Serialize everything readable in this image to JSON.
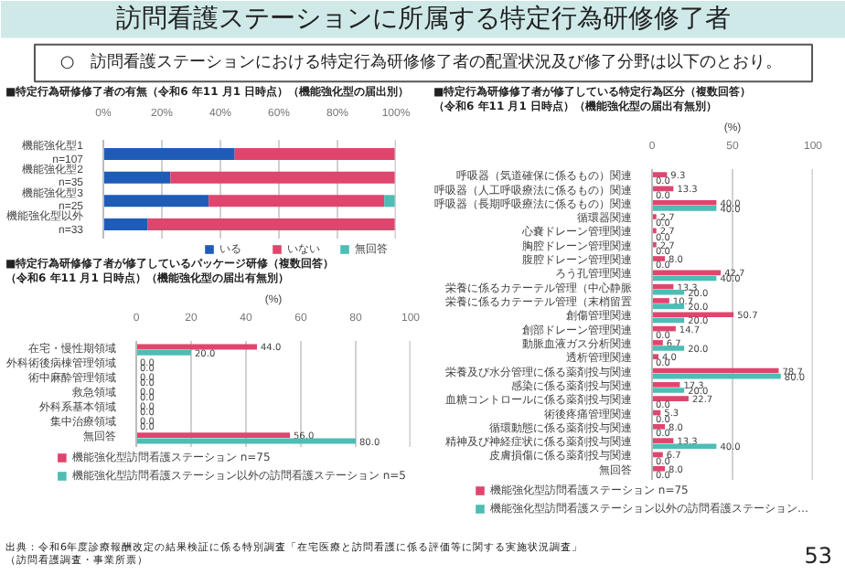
{
  "chart_data": [
    {
      "type": "other",
      "title": "訪問看護ステーションに所属する特定行為研修修了者",
      "annotations": [
        "○　訪問看護ステーションにおける特定行為研修修了者の配置状況及び修了分野は以下のとおり。"
      ]
    },
    {
      "type": "bar",
      "orientation": "horizontal",
      "stacked": true,
      "title": "■特定行為研修修了者の有無（令和6 年11 月1 日時点）（機能強化型の届出別）",
      "categories": [
        "機能強化型1\nn=107",
        "機能強化型2\nn=35",
        "機能強化型3\nn=25",
        "機能強化型以外\nn=33"
      ],
      "series": [
        {
          "name": "いる",
          "color": "#1f5cb8",
          "values": [
            44.9,
            22.9,
            36.0,
            15.2
          ]
        },
        {
          "name": "いない",
          "color": "#e0456e",
          "values": [
            55.1,
            77.1,
            60.0,
            84.8
          ]
        },
        {
          "name": "無回答",
          "color": "#4dbdb5",
          "values": [
            0,
            0,
            4.0,
            0
          ]
        }
      ],
      "xlim": [
        0,
        100
      ],
      "xticks": [
        {
          "value": 0,
          "label": "0%"
        },
        {
          "value": 20,
          "label": "20%"
        },
        {
          "value": 40,
          "label": "40%"
        },
        {
          "value": 60,
          "label": "60%"
        },
        {
          "value": 80,
          "label": "80%"
        },
        {
          "value": 100,
          "label": "100%"
        }
      ],
      "grid": "x",
      "legend": "bottom"
    },
    {
      "type": "bar",
      "orientation": "horizontal",
      "title": "■特定行為研修修了者が修了しているパッケージ研修（複数回答）",
      "subtitle": "（令和6 年11 月1 日時点）（機能強化型の届出有無別）",
      "categories": [
        "在宅・慢性期領域",
        "外科術後病棟管理領域",
        "術中麻酔管理領域",
        "救急領域",
        "外科系基本領域",
        "集中治療領域",
        "無回答"
      ],
      "series": [
        {
          "name": "機能強化型訪問看護ステーション n=75",
          "color": "#e0456e",
          "values": [
            44.0,
            0,
            0,
            0,
            0,
            0,
            56.0
          ],
          "value_labels": [
            "44.0",
            "0.0",
            "0.0",
            "0.0",
            "0.0",
            "0.0",
            "56.0"
          ]
        },
        {
          "name": "機能強化型訪問看護ステーション以外の訪問看護ステーション n=5",
          "color": "#4dbdb5",
          "values": [
            20.0,
            0,
            0,
            0,
            0,
            0,
            80.0
          ],
          "value_labels": [
            "20.0",
            "0.0",
            "0.0",
            "0.0",
            "0.0",
            "0.0",
            "80.0"
          ]
        }
      ],
      "xlim": [
        0,
        100
      ],
      "xticks": [
        0,
        20,
        40,
        60,
        80,
        100
      ],
      "xlabel": "(%)",
      "grid": "x",
      "legend": "bottom",
      "annotations": [
        "出典：令和6年度診療報酬改定の結果検証に係る特別調査「在宅医療と訪問看護に係る評価等に関する実施状況調査」（訪問看護調査・事業所票）"
      ]
    },
    {
      "type": "bar",
      "orientation": "horizontal",
      "title": "■特定行為研修修了者が修了している特定行為区分（複数回答）",
      "subtitle": "（令和6 年11 月1 日時点）（機能強化型の届出有無別）",
      "categories": [
        "呼吸器（気道確保に係るもの）関連",
        "呼吸器（人工呼吸療法に係るもの）関連",
        "呼吸器（長期呼吸療法に係るもの）関連",
        "循環器関連",
        "心嚢ドレーン管理関連",
        "胸腔ドレーン管理関連",
        "腹腔ドレーン管理関連",
        "ろう孔管理関連",
        "栄養に係るカテーテル管理（中心静脈",
        "栄養に係るカテーテル管理（末梢留置",
        "創傷管理関連",
        "創部ドレーン管理関連",
        "動脈血液ガス分析関連",
        "透析管理関連",
        "栄養及び水分管理に係る薬剤投与関連",
        "感染に係る薬剤投与関連",
        "血糖コントロールに係る薬剤投与関連",
        "術後疼痛管理関連",
        "循環動態に係る薬剤投与関連",
        "精神及び神経症状に係る薬剤投与関連",
        "皮膚損傷に係る薬剤投与関連",
        "無回答"
      ],
      "series": [
        {
          "name": "機能強化型訪問看護ステーション n=75",
          "color": "#e0456e",
          "values": [
            9.3,
            13.3,
            40.0,
            2.7,
            2.7,
            2.7,
            8.0,
            42.7,
            13.3,
            10.7,
            50.7,
            14.7,
            6.7,
            4.0,
            78.7,
            17.3,
            22.7,
            5.3,
            8.0,
            13.3,
            6.7,
            8.0
          ],
          "value_labels": [
            "9.3",
            "13.3",
            "40.0",
            "2.7",
            "2.7",
            "2.7",
            "8.0",
            "42.7",
            "13.3",
            "10.7",
            "50.7",
            "14.7",
            "6.7",
            "4.0",
            "78.7",
            "17.3",
            "22.7",
            "5.3",
            "8.0",
            "13.3",
            "6.7",
            "8.0"
          ]
        },
        {
          "name": "機能強化型訪問看護ステーション以外の訪問看護ステーション…",
          "color": "#4dbdb5",
          "values": [
            0,
            0,
            40.0,
            0,
            0,
            0,
            0,
            40.0,
            20.0,
            20.0,
            20.0,
            0,
            20.0,
            0,
            80.0,
            20.0,
            0,
            0,
            0,
            40.0,
            0,
            0
          ],
          "value_labels": [
            "0.0",
            "0.0",
            "40.0",
            "0.0",
            "0.0",
            "0.0",
            "0.0",
            "40.0",
            "20.0",
            "20.0",
            "20.0",
            "0.0",
            "20.0",
            "0.0",
            "80.0",
            "20.0",
            "0.0",
            "0.0",
            "0.0",
            "40.0",
            "0.0",
            "0.0"
          ]
        }
      ],
      "xlim": [
        0,
        100
      ],
      "xticks": [
        0,
        50,
        100
      ],
      "xlabel": "(%)",
      "grid": "x",
      "legend": "bottom",
      "annotations": [
        "53"
      ]
    }
  ]
}
